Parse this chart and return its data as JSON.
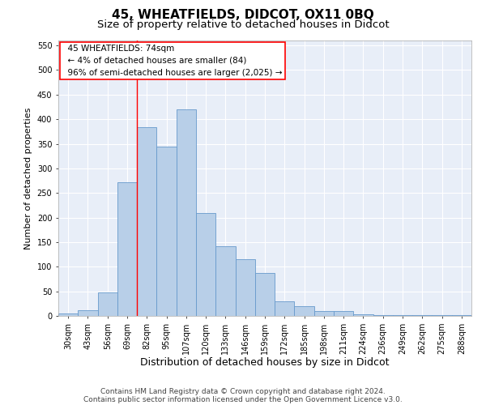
{
  "title": "45, WHEATFIELDS, DIDCOT, OX11 0BQ",
  "subtitle": "Size of property relative to detached houses in Didcot",
  "xlabel": "Distribution of detached houses by size in Didcot",
  "ylabel": "Number of detached properties",
  "categories": [
    "30sqm",
    "43sqm",
    "56sqm",
    "69sqm",
    "82sqm",
    "95sqm",
    "107sqm",
    "120sqm",
    "133sqm",
    "146sqm",
    "159sqm",
    "172sqm",
    "185sqm",
    "198sqm",
    "211sqm",
    "224sqm",
    "236sqm",
    "249sqm",
    "262sqm",
    "275sqm",
    "288sqm"
  ],
  "values": [
    5,
    12,
    48,
    272,
    383,
    345,
    420,
    210,
    142,
    115,
    87,
    30,
    20,
    10,
    10,
    3,
    2,
    1,
    1,
    2,
    1
  ],
  "bar_color": "#b8cfe8",
  "bar_edge_color": "#6699cc",
  "red_line_x": 3.5,
  "annotation_box_text": "  45 WHEATFIELDS: 74sqm\n  ← 4% of detached houses are smaller (84)\n  96% of semi-detached houses are larger (2,025) →",
  "ylim": [
    0,
    560
  ],
  "yticks": [
    0,
    50,
    100,
    150,
    200,
    250,
    300,
    350,
    400,
    450,
    500,
    550
  ],
  "background_color": "#e8eef8",
  "grid_color": "#ffffff",
  "title_fontsize": 11,
  "subtitle_fontsize": 9.5,
  "ylabel_fontsize": 8,
  "xlabel_fontsize": 9,
  "tick_fontsize": 7,
  "ann_fontsize": 7.5,
  "footer_fontsize": 6.5,
  "footer_line1": "Contains HM Land Registry data © Crown copyright and database right 2024.",
  "footer_line2": "Contains public sector information licensed under the Open Government Licence v3.0."
}
